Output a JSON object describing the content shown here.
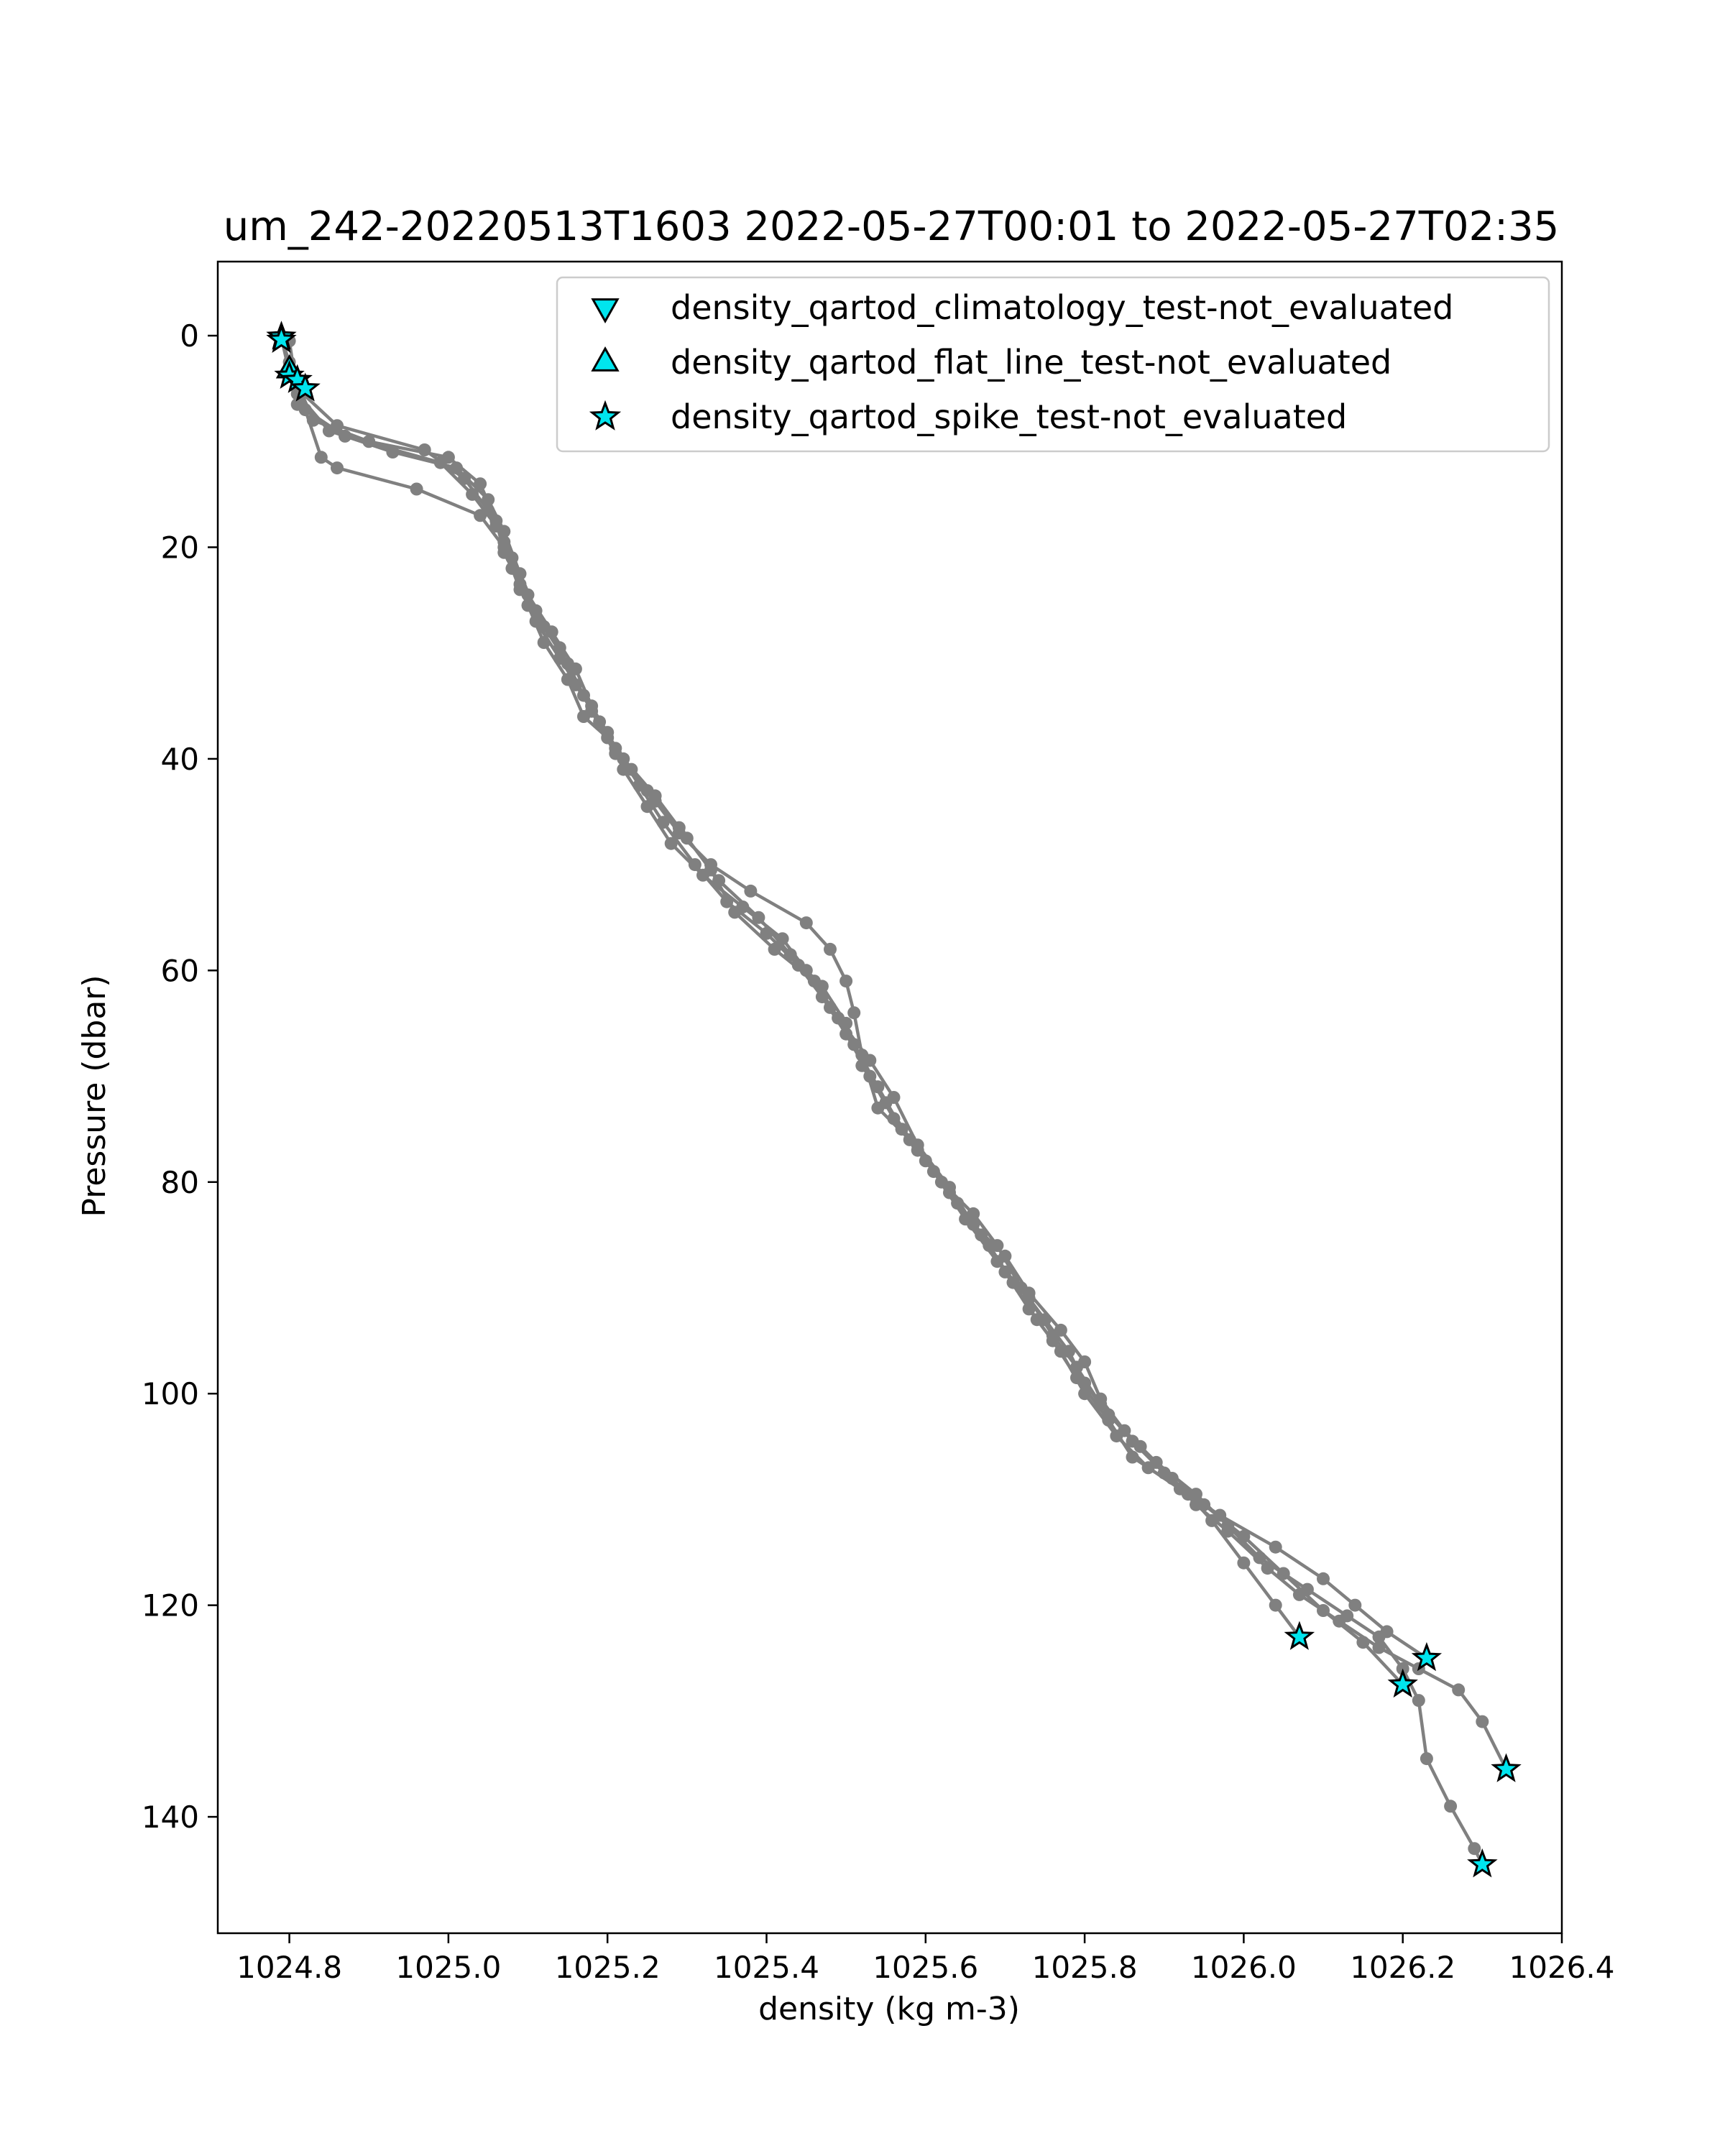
{
  "chart_data": {
    "type": "line",
    "title": "um_242-20220513T1603 2022-05-27T00:01 to 2022-05-27T02:35",
    "xlabel": "density (kg m-3)",
    "ylabel": "Pressure (dbar)",
    "xlim": [
      1024.71,
      1026.4
    ],
    "ylim": [
      151,
      -7
    ],
    "y_inverted": true,
    "xticks": [
      "1024.8",
      "1025.0",
      "1025.2",
      "1025.4",
      "1025.6",
      "1025.8",
      "1026.0",
      "1026.2",
      "1026.4"
    ],
    "yticks": [
      "0",
      "20",
      "40",
      "60",
      "80",
      "100",
      "120",
      "140"
    ],
    "grid": false,
    "legend_position": "upper right",
    "colors": {
      "profile": "#808080",
      "flag_fill": "#00e5ee",
      "flag_edge": "#000000"
    },
    "legend": [
      {
        "label": "density_qartod_climatology_test-not_evaluated",
        "marker": "triangle-down"
      },
      {
        "label": "density_qartod_flat_line_test-not_evaluated",
        "marker": "triangle-up"
      },
      {
        "label": "density_qartod_spike_test-not_evaluated",
        "marker": "star"
      }
    ],
    "series": [
      {
        "points": [
          [
            1024.79,
            0.3
          ],
          [
            1024.8,
            2.5
          ],
          [
            1024.81,
            5.0
          ],
          [
            1024.86,
            8.5
          ],
          [
            1024.97,
            10.8
          ],
          [
            1025.02,
            13.5
          ],
          [
            1025.05,
            16.5
          ],
          [
            1025.07,
            19.5
          ],
          [
            1025.08,
            22.0
          ],
          [
            1025.1,
            25.5
          ],
          [
            1025.12,
            29.0
          ],
          [
            1025.15,
            32.5
          ],
          [
            1025.17,
            36.0
          ],
          [
            1025.2,
            38.0
          ],
          [
            1025.23,
            41.0
          ],
          [
            1025.26,
            44.0
          ],
          [
            1025.29,
            47.0
          ],
          [
            1025.33,
            50.0
          ],
          [
            1025.38,
            52.5
          ],
          [
            1025.45,
            55.5
          ],
          [
            1025.48,
            58.0
          ],
          [
            1025.5,
            61.0
          ],
          [
            1025.51,
            64.0
          ],
          [
            1025.52,
            68.0
          ],
          [
            1025.54,
            73.0
          ],
          [
            1025.58,
            76.0
          ],
          [
            1025.62,
            80.0
          ],
          [
            1025.66,
            83.0
          ],
          [
            1025.69,
            86.0
          ],
          [
            1025.72,
            90.0
          ],
          [
            1025.75,
            93.0
          ],
          [
            1025.78,
            96.0
          ],
          [
            1025.8,
            99.0
          ],
          [
            1025.83,
            102.0
          ],
          [
            1025.87,
            105.0
          ],
          [
            1025.91,
            108.0
          ],
          [
            1025.94,
            110.5
          ],
          [
            1025.98,
            113.0
          ],
          [
            1026.03,
            116.5
          ],
          [
            1026.07,
            119.0
          ],
          [
            1026.12,
            121.5
          ],
          [
            1026.17,
            124.0
          ],
          [
            1026.22,
            126.0
          ],
          [
            1026.27,
            128.0
          ],
          [
            1026.3,
            131.0
          ],
          [
            1026.33,
            135.5
          ]
        ]
      },
      {
        "points": [
          [
            1024.79,
            0.2
          ],
          [
            1024.8,
            3.5
          ],
          [
            1024.81,
            6.5
          ],
          [
            1024.87,
            9.5
          ],
          [
            1024.99,
            12.0
          ],
          [
            1025.03,
            15.0
          ],
          [
            1025.06,
            18.0
          ],
          [
            1025.08,
            21.0
          ],
          [
            1025.1,
            24.5
          ],
          [
            1025.13,
            28.0
          ],
          [
            1025.16,
            31.5
          ],
          [
            1025.18,
            35.0
          ],
          [
            1025.21,
            39.0
          ],
          [
            1025.24,
            42.5
          ],
          [
            1025.27,
            46.0
          ],
          [
            1025.31,
            50.0
          ],
          [
            1025.35,
            53.5
          ],
          [
            1025.4,
            56.5
          ],
          [
            1025.44,
            59.5
          ],
          [
            1025.47,
            62.5
          ],
          [
            1025.5,
            66.0
          ],
          [
            1025.53,
            70.0
          ],
          [
            1025.56,
            74.0
          ],
          [
            1025.6,
            78.0
          ],
          [
            1025.64,
            82.0
          ],
          [
            1025.68,
            86.0
          ],
          [
            1025.71,
            89.5
          ],
          [
            1025.74,
            93.0
          ],
          [
            1025.77,
            96.0
          ],
          [
            1025.8,
            100.0
          ],
          [
            1025.84,
            104.0
          ],
          [
            1025.88,
            107.0
          ],
          [
            1025.93,
            109.5
          ],
          [
            1025.96,
            112.0
          ],
          [
            1026.0,
            116.0
          ],
          [
            1026.04,
            120.0
          ],
          [
            1026.07,
            123.0
          ]
        ]
      },
      {
        "points": [
          [
            1024.79,
            0.4
          ],
          [
            1024.81,
            4.5
          ],
          [
            1024.83,
            8.0
          ],
          [
            1024.9,
            10.0
          ],
          [
            1025.0,
            11.5
          ],
          [
            1025.04,
            14.0
          ],
          [
            1025.06,
            17.5
          ],
          [
            1025.07,
            20.5
          ],
          [
            1025.09,
            23.5
          ],
          [
            1025.11,
            27.0
          ],
          [
            1025.14,
            30.5
          ],
          [
            1025.17,
            34.0
          ],
          [
            1025.2,
            37.5
          ],
          [
            1025.22,
            41.0
          ],
          [
            1025.25,
            44.5
          ],
          [
            1025.28,
            48.0
          ],
          [
            1025.32,
            51.0
          ],
          [
            1025.37,
            54.0
          ],
          [
            1025.42,
            57.0
          ],
          [
            1025.45,
            60.0
          ],
          [
            1025.48,
            63.5
          ],
          [
            1025.51,
            67.0
          ],
          [
            1025.54,
            71.0
          ],
          [
            1025.57,
            75.0
          ],
          [
            1025.61,
            79.0
          ],
          [
            1025.65,
            83.5
          ],
          [
            1025.69,
            87.5
          ],
          [
            1025.73,
            91.0
          ],
          [
            1025.76,
            94.5
          ],
          [
            1025.79,
            97.5
          ],
          [
            1025.82,
            101.0
          ],
          [
            1025.86,
            104.5
          ],
          [
            1025.9,
            107.5
          ],
          [
            1025.95,
            110.5
          ],
          [
            1026.0,
            113.5
          ],
          [
            1026.05,
            117.0
          ],
          [
            1026.1,
            120.5
          ],
          [
            1026.15,
            123.5
          ],
          [
            1026.2,
            127.5
          ]
        ]
      },
      {
        "points": [
          [
            1024.8,
            0.5
          ],
          [
            1024.81,
            5.5
          ],
          [
            1024.85,
            9.0
          ],
          [
            1024.93,
            11.0
          ],
          [
            1025.01,
            12.5
          ],
          [
            1025.05,
            15.5
          ],
          [
            1025.07,
            18.5
          ],
          [
            1025.09,
            22.5
          ],
          [
            1025.11,
            26.0
          ],
          [
            1025.14,
            29.5
          ],
          [
            1025.16,
            33.0
          ],
          [
            1025.19,
            36.5
          ],
          [
            1025.22,
            40.0
          ],
          [
            1025.26,
            43.5
          ],
          [
            1025.3,
            47.5
          ],
          [
            1025.34,
            51.5
          ],
          [
            1025.39,
            55.0
          ],
          [
            1025.43,
            58.5
          ],
          [
            1025.47,
            61.5
          ],
          [
            1025.5,
            65.0
          ],
          [
            1025.52,
            69.0
          ],
          [
            1025.55,
            72.5
          ],
          [
            1025.59,
            77.0
          ],
          [
            1025.63,
            81.0
          ],
          [
            1025.67,
            85.0
          ],
          [
            1025.7,
            88.5
          ],
          [
            1025.73,
            92.0
          ],
          [
            1025.76,
            95.0
          ],
          [
            1025.79,
            98.5
          ],
          [
            1025.83,
            102.5
          ],
          [
            1025.86,
            106.0
          ],
          [
            1025.92,
            109.0
          ],
          [
            1025.97,
            111.5
          ],
          [
            1026.04,
            114.5
          ],
          [
            1026.1,
            117.5
          ],
          [
            1026.14,
            120.0
          ],
          [
            1026.18,
            122.5
          ],
          [
            1026.23,
            125.0
          ]
        ]
      },
      {
        "points": [
          [
            1024.79,
            0.1
          ],
          [
            1024.8,
            3.0
          ],
          [
            1024.82,
            7.0
          ],
          [
            1024.84,
            11.5
          ],
          [
            1024.86,
            12.5
          ],
          [
            1024.96,
            14.5
          ],
          [
            1025.04,
            17.0
          ],
          [
            1025.07,
            20.0
          ],
          [
            1025.09,
            24.0
          ],
          [
            1025.12,
            27.5
          ],
          [
            1025.15,
            31.0
          ],
          [
            1025.18,
            35.5
          ],
          [
            1025.21,
            39.5
          ],
          [
            1025.25,
            43.0
          ],
          [
            1025.29,
            46.5
          ],
          [
            1025.33,
            50.5
          ],
          [
            1025.36,
            54.5
          ],
          [
            1025.41,
            58.0
          ],
          [
            1025.46,
            61.0
          ],
          [
            1025.49,
            64.5
          ],
          [
            1025.53,
            68.5
          ],
          [
            1025.56,
            72.0
          ],
          [
            1025.59,
            76.5
          ],
          [
            1025.63,
            80.5
          ],
          [
            1025.66,
            84.0
          ],
          [
            1025.7,
            87.0
          ],
          [
            1025.73,
            90.5
          ],
          [
            1025.77,
            94.0
          ],
          [
            1025.8,
            97.0
          ],
          [
            1025.82,
            100.5
          ],
          [
            1025.85,
            103.5
          ],
          [
            1025.89,
            106.5
          ],
          [
            1025.94,
            109.5
          ],
          [
            1025.98,
            112.5
          ],
          [
            1026.02,
            115.5
          ],
          [
            1026.08,
            118.5
          ],
          [
            1026.13,
            121.0
          ],
          [
            1026.17,
            123.0
          ],
          [
            1026.2,
            126.0
          ],
          [
            1026.22,
            129.0
          ],
          [
            1026.23,
            134.5
          ],
          [
            1026.26,
            139.0
          ],
          [
            1026.29,
            143.0
          ],
          [
            1026.3,
            144.5
          ]
        ]
      }
    ],
    "flagged_points": [
      {
        "x": 1024.79,
        "y": 0.1,
        "marker": "star"
      },
      {
        "x": 1024.79,
        "y": 0.4,
        "marker": "star"
      },
      {
        "x": 1024.8,
        "y": 3.2,
        "marker": "triangle-up"
      },
      {
        "x": 1024.8,
        "y": 3.8,
        "marker": "star"
      },
      {
        "x": 1024.81,
        "y": 4.2,
        "marker": "star"
      },
      {
        "x": 1024.82,
        "y": 5.0,
        "marker": "star"
      },
      {
        "x": 1026.07,
        "y": 123.0,
        "marker": "star"
      },
      {
        "x": 1026.2,
        "y": 127.5,
        "marker": "star"
      },
      {
        "x": 1026.23,
        "y": 125.0,
        "marker": "star"
      },
      {
        "x": 1026.33,
        "y": 135.5,
        "marker": "star"
      },
      {
        "x": 1026.3,
        "y": 144.5,
        "marker": "star"
      }
    ]
  }
}
